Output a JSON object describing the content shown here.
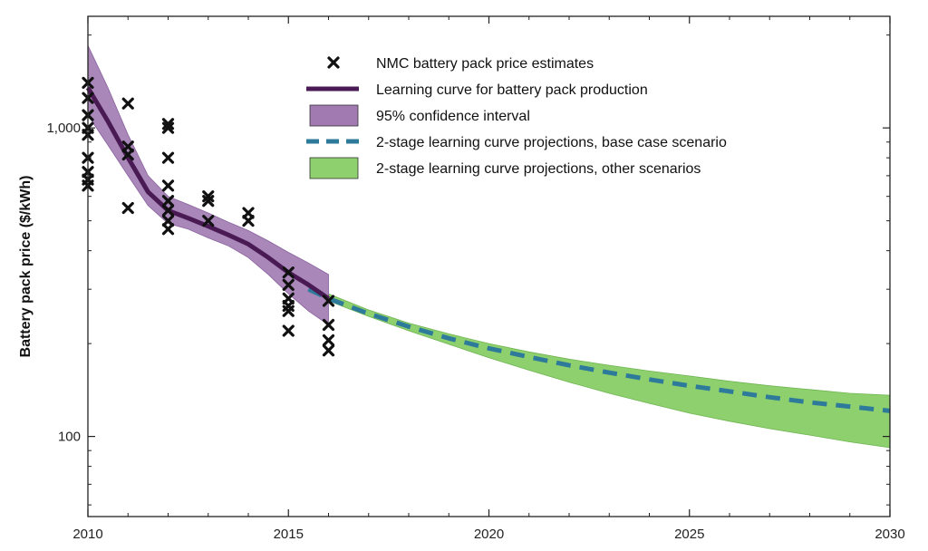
{
  "chart_data": {
    "type": "line",
    "title": "",
    "xlabel": "",
    "ylabel": "Battery pack price ($/kWh)",
    "y_scale": "log",
    "xlim": [
      2010,
      2030
    ],
    "ylim": [
      55,
      2300
    ],
    "x_ticks": [
      2010,
      2015,
      2020,
      2025,
      2030
    ],
    "x_tick_labels": [
      "2010",
      "2015",
      "2020",
      "2025",
      "2030"
    ],
    "y_ticks": [
      100,
      1000
    ],
    "y_tick_labels": [
      "100",
      "1,000"
    ],
    "grid": false,
    "legend_position": "top-center",
    "legend": [
      {
        "label": "NMC battery pack price estimates",
        "marker": "x",
        "color": "#111111"
      },
      {
        "label": "Learning curve for battery pack production",
        "marker": "line",
        "color": "#4a1a55"
      },
      {
        "label": "95% confidence interval",
        "marker": "patch",
        "color": "#a07ab0"
      },
      {
        "label": "2-stage learning curve projections, base case scenario",
        "marker": "dashed",
        "color": "#2e7a9a"
      },
      {
        "label": "2-stage learning curve projections, other scenarios",
        "marker": "patch",
        "color": "#8ed06e"
      }
    ],
    "series": [
      {
        "name": "NMC battery pack price estimates",
        "type": "scatter",
        "points": [
          [
            2010,
            1400
          ],
          [
            2010,
            1250
          ],
          [
            2010,
            1100
          ],
          [
            2010,
            1000
          ],
          [
            2010,
            950
          ],
          [
            2010,
            800
          ],
          [
            2010,
            720
          ],
          [
            2010,
            680
          ],
          [
            2010,
            650
          ],
          [
            2011,
            1200
          ],
          [
            2011,
            870
          ],
          [
            2011,
            820
          ],
          [
            2011,
            550
          ],
          [
            2012,
            1030
          ],
          [
            2012,
            1000
          ],
          [
            2012,
            800
          ],
          [
            2012,
            650
          ],
          [
            2012,
            580
          ],
          [
            2012,
            540
          ],
          [
            2012,
            500
          ],
          [
            2012,
            470
          ],
          [
            2013,
            600
          ],
          [
            2013,
            580
          ],
          [
            2013,
            500
          ],
          [
            2014,
            530
          ],
          [
            2014,
            500
          ],
          [
            2015,
            340
          ],
          [
            2015,
            310
          ],
          [
            2015,
            280
          ],
          [
            2015,
            265
          ],
          [
            2015,
            255
          ],
          [
            2015,
            220
          ],
          [
            2016,
            275
          ],
          [
            2016,
            230
          ],
          [
            2016,
            205
          ],
          [
            2016,
            190
          ]
        ]
      },
      {
        "name": "Learning curve for battery pack production",
        "type": "line",
        "x": [
          2010,
          2010.5,
          2011,
          2011.5,
          2012,
          2012.5,
          2013,
          2013.5,
          2014,
          2014.5,
          2015,
          2015.5,
          2016
        ],
        "y": [
          1350,
          1050,
          800,
          620,
          540,
          510,
          480,
          450,
          420,
          380,
          340,
          310,
          280
        ]
      },
      {
        "name": "95% confidence interval",
        "type": "band",
        "x": [
          2010,
          2010.5,
          2011,
          2011.5,
          2012,
          2012.5,
          2013,
          2013.5,
          2014,
          2014.5,
          2015,
          2015.5,
          2016
        ],
        "lower": [
          1100,
          880,
          700,
          560,
          490,
          470,
          440,
          415,
          380,
          335,
          290,
          255,
          230
        ],
        "upper": [
          1850,
          1350,
          950,
          700,
          600,
          565,
          530,
          495,
          465,
          430,
          395,
          365,
          335
        ]
      },
      {
        "name": "2-stage learning curve projections, base case scenario",
        "type": "line",
        "x": [
          2015.5,
          2016,
          2017,
          2018,
          2019,
          2020,
          2021,
          2022,
          2023,
          2024,
          2025,
          2026,
          2027,
          2028,
          2029,
          2030
        ],
        "y": [
          300,
          280,
          250,
          227,
          208,
          193,
          181,
          170,
          161,
          153,
          146,
          140,
          134,
          129,
          125,
          121
        ]
      },
      {
        "name": "2-stage learning curve projections, other scenarios",
        "type": "band",
        "x": [
          2016,
          2017,
          2018,
          2019,
          2020,
          2021,
          2022,
          2023,
          2024,
          2025,
          2026,
          2027,
          2028,
          2029,
          2030
        ],
        "lower": [
          275,
          245,
          220,
          199,
          180,
          164,
          150,
          138,
          128,
          119,
          112,
          106,
          101,
          96,
          92
        ],
        "upper": [
          290,
          257,
          233,
          215,
          200,
          188,
          178,
          170,
          163,
          157,
          151,
          146,
          142,
          138,
          136
        ]
      }
    ]
  }
}
